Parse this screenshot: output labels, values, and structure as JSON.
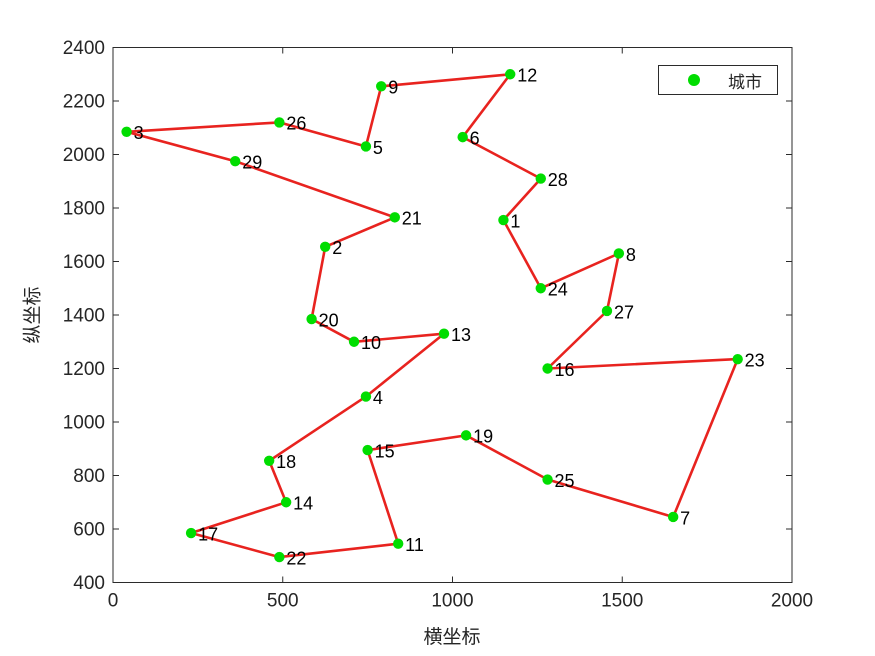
{
  "figure": {
    "background": "#ffffff"
  },
  "chart_data": {
    "type": "scatter",
    "title": "",
    "xlabel": "横坐标",
    "ylabel": "纵坐标",
    "xlim": [
      0,
      2000
    ],
    "ylim": [
      400,
      2400
    ],
    "xticks": [
      0,
      500,
      1000,
      1500,
      2000
    ],
    "yticks": [
      400,
      600,
      800,
      1000,
      1200,
      1400,
      1600,
      1800,
      2000,
      2200,
      2400
    ],
    "grid": false,
    "legend": {
      "position": "top-right",
      "entries": [
        {
          "label": "城市",
          "marker": "filled-circle",
          "color": "#00dd00"
        }
      ]
    },
    "styles": {
      "tour_line_color": "#e8231f",
      "tour_line_width": 2.6,
      "marker_color": "#00dd00",
      "marker_radius": 5.2,
      "axis_color": "#2b2b2b",
      "tick_label_color": "#262626",
      "city_label_color": "#000000",
      "tick_length": 6
    },
    "cities": [
      {
        "id": 1,
        "x": 1150,
        "y": 1755
      },
      {
        "id": 2,
        "x": 625,
        "y": 1655
      },
      {
        "id": 3,
        "x": 40,
        "y": 2085
      },
      {
        "id": 4,
        "x": 745,
        "y": 1095
      },
      {
        "id": 5,
        "x": 745,
        "y": 2030
      },
      {
        "id": 6,
        "x": 1030,
        "y": 2065
      },
      {
        "id": 7,
        "x": 1650,
        "y": 645
      },
      {
        "id": 8,
        "x": 1490,
        "y": 1630
      },
      {
        "id": 9,
        "x": 790,
        "y": 2255
      },
      {
        "id": 10,
        "x": 710,
        "y": 1300
      },
      {
        "id": 11,
        "x": 840,
        "y": 545
      },
      {
        "id": 12,
        "x": 1170,
        "y": 2300
      },
      {
        "id": 13,
        "x": 975,
        "y": 1330
      },
      {
        "id": 14,
        "x": 510,
        "y": 700
      },
      {
        "id": 15,
        "x": 750,
        "y": 895
      },
      {
        "id": 16,
        "x": 1280,
        "y": 1200
      },
      {
        "id": 17,
        "x": 230,
        "y": 585
      },
      {
        "id": 18,
        "x": 460,
        "y": 855
      },
      {
        "id": 19,
        "x": 1040,
        "y": 950
      },
      {
        "id": 20,
        "x": 585,
        "y": 1385
      },
      {
        "id": 21,
        "x": 830,
        "y": 1765
      },
      {
        "id": 22,
        "x": 490,
        "y": 495
      },
      {
        "id": 23,
        "x": 1840,
        "y": 1235
      },
      {
        "id": 24,
        "x": 1260,
        "y": 1500
      },
      {
        "id": 25,
        "x": 1280,
        "y": 785
      },
      {
        "id": 26,
        "x": 490,
        "y": 2120
      },
      {
        "id": 27,
        "x": 1455,
        "y": 1415
      },
      {
        "id": 28,
        "x": 1260,
        "y": 1910
      },
      {
        "id": 29,
        "x": 360,
        "y": 1975
      }
    ],
    "tour_order": [
      3,
      26,
      5,
      9,
      12,
      6,
      28,
      1,
      24,
      8,
      27,
      16,
      23,
      7,
      25,
      19,
      15,
      11,
      22,
      17,
      14,
      18,
      4,
      13,
      10,
      20,
      2,
      21,
      29,
      3
    ]
  }
}
